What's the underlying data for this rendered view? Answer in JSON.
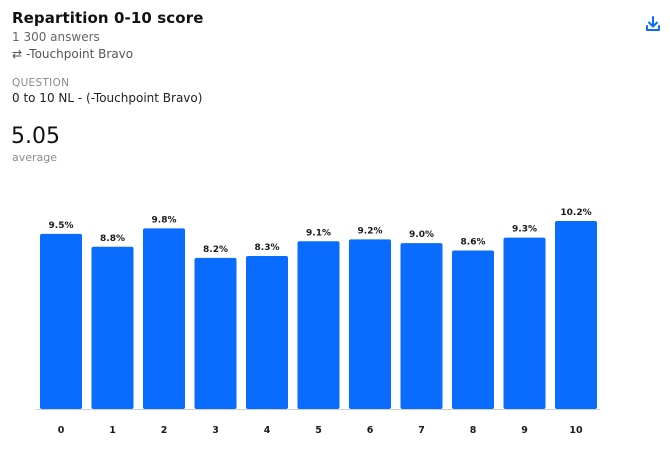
{
  "header": {
    "title": "Repartition 0-10 score",
    "answers": "1 300 answers",
    "filter_icon": "swap-arrows-icon",
    "filter_label": "-Touchpoint Bravo",
    "download_icon": "download-icon"
  },
  "question": {
    "label": "QUESTION",
    "text": "0 to 10 NL - (-Touchpoint Bravo)"
  },
  "summary": {
    "value": "5.05",
    "label": "average"
  },
  "colors": {
    "bar": "#0a6bff",
    "accent": "#0a6bff"
  },
  "chart_data": {
    "type": "bar",
    "categories": [
      "0",
      "1",
      "2",
      "3",
      "4",
      "5",
      "6",
      "7",
      "8",
      "9",
      "10"
    ],
    "values": [
      9.5,
      8.8,
      9.8,
      8.2,
      8.3,
      9.1,
      9.2,
      9.0,
      8.6,
      9.3,
      10.2
    ],
    "value_labels": [
      "9.5%",
      "8.8%",
      "9.8%",
      "8.2%",
      "8.3%",
      "9.1%",
      "9.2%",
      "9.0%",
      "8.6%",
      "9.3%",
      "10.2%"
    ],
    "unit": "%",
    "ylim": [
      0,
      10.2
    ],
    "grid": false,
    "legend": "none"
  }
}
